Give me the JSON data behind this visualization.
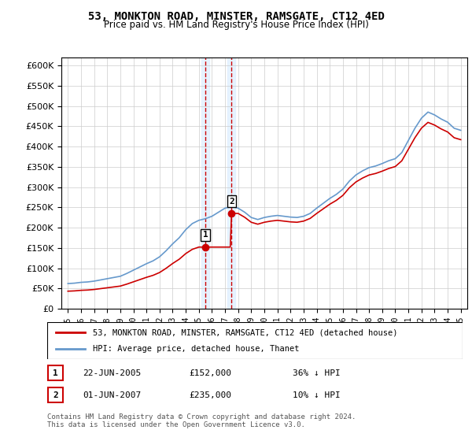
{
  "title": "53, MONKTON ROAD, MINSTER, RAMSGATE, CT12 4ED",
  "subtitle": "Price paid vs. HM Land Registry's House Price Index (HPI)",
  "legend_label_red": "53, MONKTON ROAD, MINSTER, RAMSGATE, CT12 4ED (detached house)",
  "legend_label_blue": "HPI: Average price, detached house, Thanet",
  "transaction_1_label": "1",
  "transaction_1_date": "22-JUN-2005",
  "transaction_1_price": "£152,000",
  "transaction_1_hpi": "36% ↓ HPI",
  "transaction_2_label": "2",
  "transaction_2_date": "01-JUN-2007",
  "transaction_2_price": "£235,000",
  "transaction_2_hpi": "10% ↓ HPI",
  "footnote": "Contains HM Land Registry data © Crown copyright and database right 2024.\nThis data is licensed under the Open Government Licence v3.0.",
  "ylim_min": 0,
  "ylim_max": 620000,
  "color_red": "#cc0000",
  "color_blue": "#6699cc",
  "color_highlight": "#ddeeff",
  "background_color": "#ffffff",
  "grid_color": "#cccccc"
}
